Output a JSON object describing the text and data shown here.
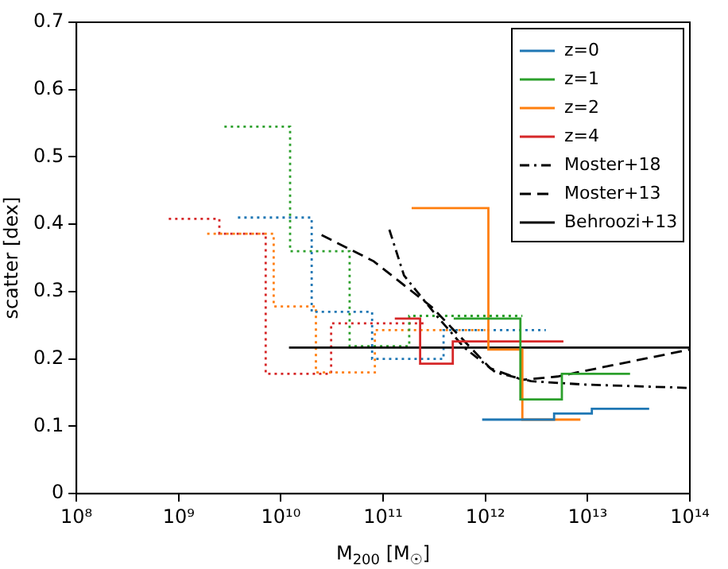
{
  "chart_data": {
    "type": "step",
    "xlabel": "M$_{200}$ [M$_{☉}$]",
    "ylabel": "scatter [dex]",
    "log": "x",
    "xlim": [
      100000000.0,
      100000000000000.0
    ],
    "xticks": [
      {
        "value": 100000000.0,
        "label": "10⁸"
      },
      {
        "value": 1000000000.0,
        "label": "10⁹"
      },
      {
        "value": 10000000000.0,
        "label": "10¹⁰"
      },
      {
        "value": 100000000000.0,
        "label": "10¹¹"
      },
      {
        "value": 1000000000000.0,
        "label": "10¹²"
      },
      {
        "value": 10000000000000.0,
        "label": "10¹³"
      },
      {
        "value": 100000000000000.0,
        "label": "10¹⁴"
      }
    ],
    "ylim": [
      0,
      0.7
    ],
    "yticks": [
      0,
      0.1,
      0.2,
      0.3,
      0.4,
      0.5,
      0.6,
      0.7
    ],
    "grid": false,
    "legend": "top right",
    "series": [
      {
        "name": "z=0",
        "color": "#1f77b4",
        "line_style": "solid",
        "x": [
          930000000000.0,
          4700000000000.0,
          11000000000000.0,
          40000000000000.0
        ],
        "values": [
          0.11,
          0.119,
          0.126,
          0.126
        ]
      },
      {
        "name": "z=1",
        "color": "#2ca02c",
        "line_style": "solid",
        "x": [
          490000000000.0,
          2200000000000.0,
          5600000000000.0,
          26000000000000.0
        ],
        "values": [
          0.26,
          0.14,
          0.178,
          0.178
        ]
      },
      {
        "name": "z=2",
        "color": "#ff7f0e",
        "line_style": "solid",
        "x": [
          190000000000.0,
          1070000000000.0,
          2300000000000.0,
          8500000000000.0
        ],
        "values": [
          0.424,
          0.214,
          0.11,
          0.11
        ]
      },
      {
        "name": "z=4",
        "color": "#d62728",
        "line_style": "solid",
        "x": [
          130000000000.0,
          230000000000.0,
          480000000000.0,
          5800000000000.0
        ],
        "values": [
          0.26,
          0.193,
          0.226,
          0.226
        ]
      },
      {
        "name": "Moster+18",
        "type": "line",
        "color": "#000000",
        "line_style": "dashdot",
        "x": [
          115000000000.0,
          160000000000.0,
          330000000000.0,
          620000000000.0,
          1260000000000.0,
          2800000000000.0,
          9300000000000.0,
          100000000000000.0
        ],
        "values": [
          0.392,
          0.324,
          0.265,
          0.217,
          0.18,
          0.167,
          0.162,
          0.157
        ]
      },
      {
        "name": "Moster+13",
        "type": "line",
        "color": "#000000",
        "line_style": "dashed",
        "x": [
          25000000000.0,
          81000000000.0,
          300000000000.0,
          1120000000000.0,
          2300000000000.0,
          5100000000000.0,
          16600000000000.0,
          100000000000000.0
        ],
        "values": [
          0.384,
          0.345,
          0.277,
          0.186,
          0.169,
          0.174,
          0.19,
          0.214
        ]
      },
      {
        "name": "Behroozi+13",
        "type": "line",
        "color": "#000000",
        "line_style": "solid",
        "x": [
          12000000000.0,
          100000000000000.0
        ],
        "values": [
          0.217,
          0.217
        ]
      },
      {
        "color": "#1f77b4",
        "line_style": "dotted",
        "x": [
          3800000000.0,
          20000000000.0,
          78000000000.0,
          390000000000.0,
          3900000000000.0
        ],
        "values": [
          0.41,
          0.27,
          0.2,
          0.243,
          0.243
        ]
      },
      {
        "color": "#2ca02c",
        "line_style": "dotted",
        "x": [
          2800000000.0,
          12300000000.0,
          47000000000.0,
          180000000000.0,
          2300000000000.0
        ],
        "values": [
          0.545,
          0.36,
          0.219,
          0.264,
          0.264
        ]
      },
      {
        "color": "#ff7f0e",
        "line_style": "dotted",
        "x": [
          1900000000.0,
          8500000000.0,
          22000000000.0,
          83000000000.0,
          1000000000000.0
        ],
        "values": [
          0.386,
          0.278,
          0.18,
          0.243,
          0.243
        ]
      },
      {
        "color": "#d62728",
        "line_style": "dotted",
        "x": [
          800000000.0,
          2500000000.0,
          7100000000.0,
          31000000000.0,
          250000000000.0
        ],
        "values": [
          0.408,
          0.386,
          0.178,
          0.253,
          0.253
        ]
      }
    ]
  }
}
